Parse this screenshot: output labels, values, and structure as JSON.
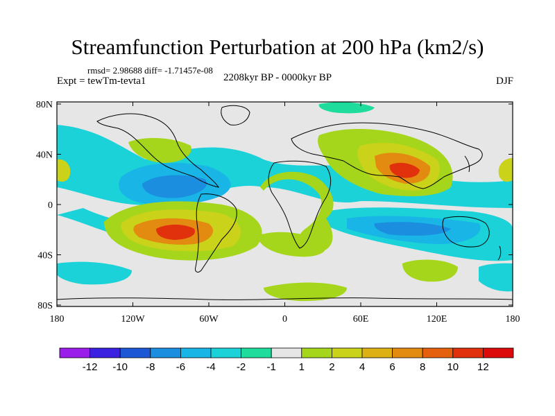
{
  "title": "Streamfunction Perturbation at 200 hPa (km2/s)",
  "stats": "rmsd= 2.98688 diff= -1.71457e-08",
  "experiment": "Expt = tewTm-tevta1",
  "period": "2208kyr BP - 0000kyr BP",
  "season": "DJF",
  "lat_labels": [
    "80N",
    "40N",
    "0",
    "40S",
    "80S"
  ],
  "lon_labels": [
    "180",
    "120W",
    "60W",
    "0",
    "60E",
    "120E",
    "180"
  ],
  "colorbar": {
    "labels": [
      "-12",
      "-10",
      "-8",
      "-6",
      "-4",
      "-2",
      "-1",
      "1",
      "2",
      "4",
      "6",
      "8",
      "10",
      "12"
    ],
    "colors": [
      "#9a1dea",
      "#3b22e0",
      "#1c58d6",
      "#1b8ee0",
      "#19b5e6",
      "#1ad2d8",
      "#1edc9c",
      "#e6e6e6",
      "#a6d61c",
      "#cad21a",
      "#ddb013",
      "#e38a10",
      "#e4600e",
      "#e0300c",
      "#dc0a0a"
    ]
  },
  "colors": {
    "background": "#e6e6e6",
    "coast": "#000000"
  }
}
